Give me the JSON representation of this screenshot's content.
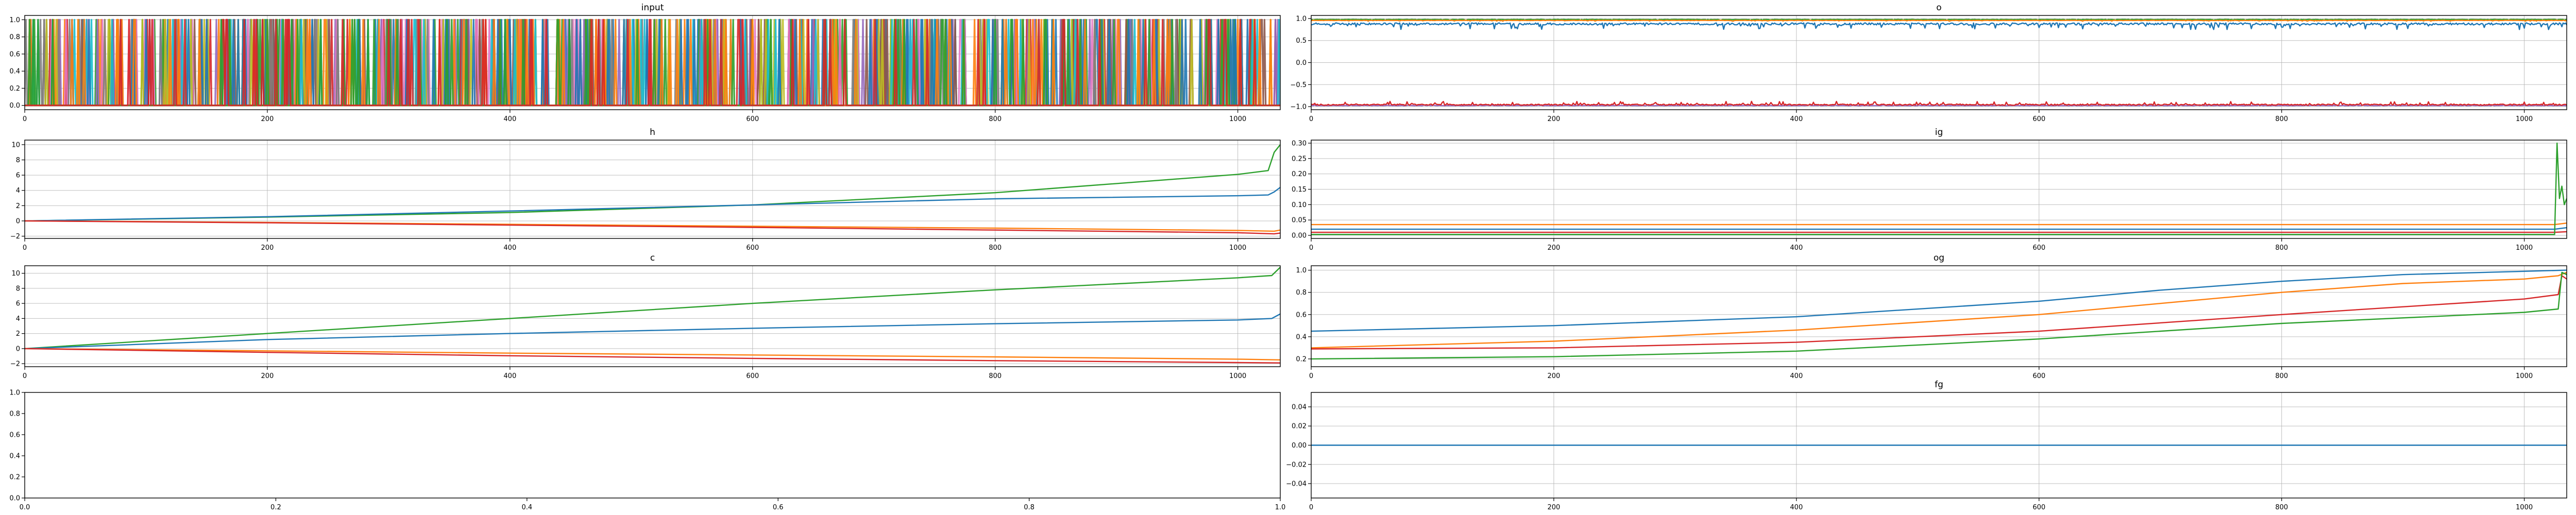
{
  "chart_data": [
    {
      "id": "input",
      "type": "line",
      "title": "input",
      "xlabel": "",
      "ylabel": "",
      "xlim": [
        0,
        1035
      ],
      "ylim": [
        -0.05,
        1.05
      ],
      "xticks": [
        0,
        200,
        400,
        600,
        800,
        1000
      ],
      "yticks": [
        0.0,
        0.2,
        0.4,
        0.6,
        0.8,
        1.0
      ],
      "tick_labels_x": [
        "0",
        "200",
        "400",
        "600",
        "800",
        "1000"
      ],
      "tick_labels_y": [
        "0.0",
        "0.2",
        "0.4",
        "0.6",
        "0.8",
        "1.0"
      ],
      "grid": true,
      "legend": "none",
      "pattern": "dense_one_hot_sequence",
      "description_of_series": "many overlapping binary series switching between 0 and 1 across all 1035 steps",
      "palette": [
        "#1f77b4",
        "#ff7f0e",
        "#2ca02c",
        "#d62728",
        "#9467bd",
        "#8c564b",
        "#e377c2",
        "#7f7f7f",
        "#bcbd22",
        "#17becf"
      ]
    },
    {
      "id": "o",
      "type": "line",
      "title": "o",
      "xlabel": "",
      "ylabel": "",
      "xlim": [
        0,
        1035
      ],
      "ylim": [
        -1.07,
        1.07
      ],
      "xticks": [
        0,
        200,
        400,
        600,
        800,
        1000
      ],
      "yticks": [
        -1.0,
        -0.5,
        0.0,
        0.5,
        1.0
      ],
      "tick_labels_x": [
        "0",
        "200",
        "400",
        "600",
        "800",
        "1000"
      ],
      "tick_labels_y": [
        "−1.0",
        "−0.5",
        "0.0",
        "0.5",
        "1.0"
      ],
      "grid": true,
      "legend": "none",
      "series": [
        {
          "color": "#2ca02c",
          "base": 0.98,
          "noise": 0.02,
          "dir": -1
        },
        {
          "color": "#ff7f0e",
          "base": 0.96,
          "noise": 0.02,
          "dir": -1
        },
        {
          "color": "#1f77b4",
          "base": 0.9,
          "noise": 0.15,
          "dir": -1
        },
        {
          "color": "#9467bd",
          "base": -0.98,
          "noise": 0.02,
          "dir": 1
        },
        {
          "color": "#d62728",
          "base": -0.97,
          "noise": 0.09,
          "dir": 1
        }
      ]
    },
    {
      "id": "h",
      "type": "line",
      "title": "h",
      "xlabel": "",
      "ylabel": "",
      "xlim": [
        0,
        1035
      ],
      "ylim": [
        -2.3,
        10.6
      ],
      "xticks": [
        0,
        200,
        400,
        600,
        800,
        1000
      ],
      "yticks": [
        -2,
        0,
        2,
        4,
        6,
        8,
        10
      ],
      "tick_labels_x": [
        "0",
        "200",
        "400",
        "600",
        "800",
        "1000"
      ],
      "tick_labels_y": [
        "−2",
        "0",
        "2",
        "4",
        "6",
        "8",
        "10"
      ],
      "grid": true,
      "legend": "none",
      "series": [
        {
          "color": "#2ca02c",
          "x": [
            0,
            200,
            400,
            600,
            800,
            1000,
            1025,
            1030,
            1035
          ],
          "y": [
            0,
            0.5,
            1.1,
            2.1,
            3.7,
            6.1,
            6.6,
            9.0,
            10.0
          ]
        },
        {
          "color": "#1f77b4",
          "x": [
            0,
            200,
            400,
            600,
            800,
            1000,
            1025,
            1030,
            1035
          ],
          "y": [
            0,
            0.55,
            1.3,
            2.1,
            2.9,
            3.3,
            3.4,
            3.8,
            4.4
          ]
        },
        {
          "color": "#ff7f0e",
          "x": [
            0,
            200,
            400,
            600,
            800,
            1000,
            1030,
            1035
          ],
          "y": [
            0,
            -0.2,
            -0.45,
            -0.7,
            -0.95,
            -1.25,
            -1.35,
            -1.2
          ]
        },
        {
          "color": "#d62728",
          "x": [
            0,
            200,
            400,
            600,
            800,
            1000,
            1030,
            1035
          ],
          "y": [
            0,
            -0.25,
            -0.55,
            -0.85,
            -1.2,
            -1.55,
            -1.7,
            -1.6
          ]
        }
      ]
    },
    {
      "id": "ig",
      "type": "line",
      "title": "ig",
      "xlabel": "",
      "ylabel": "",
      "xlim": [
        0,
        1035
      ],
      "ylim": [
        -0.01,
        0.31
      ],
      "xticks": [
        0,
        200,
        400,
        600,
        800,
        1000
      ],
      "yticks": [
        0.0,
        0.05,
        0.1,
        0.15,
        0.2,
        0.25,
        0.3
      ],
      "tick_labels_x": [
        "0",
        "200",
        "400",
        "600",
        "800",
        "1000"
      ],
      "tick_labels_y": [
        "0.00",
        "0.05",
        "0.10",
        "0.15",
        "0.20",
        "0.25",
        "0.30"
      ],
      "grid": true,
      "legend": "none",
      "series": [
        {
          "color": "#ff7f0e",
          "x": [
            0,
            1025,
            1035
          ],
          "y": [
            0.035,
            0.035,
            0.04
          ]
        },
        {
          "color": "#1f77b4",
          "x": [
            0,
            1025,
            1035
          ],
          "y": [
            0.02,
            0.02,
            0.025
          ]
        },
        {
          "color": "#d62728",
          "x": [
            0,
            1025,
            1035
          ],
          "y": [
            0.01,
            0.01,
            0.012
          ]
        },
        {
          "color": "#2ca02c",
          "x": [
            0,
            1025,
            1027,
            1029,
            1031,
            1033,
            1035
          ],
          "y": [
            0.003,
            0.003,
            0.3,
            0.12,
            0.16,
            0.1,
            0.12
          ]
        }
      ]
    },
    {
      "id": "c",
      "type": "line",
      "title": "c",
      "xlabel": "",
      "ylabel": "",
      "xlim": [
        0,
        1035
      ],
      "ylim": [
        -2.4,
        11.0
      ],
      "xticks": [
        0,
        200,
        400,
        600,
        800,
        1000
      ],
      "yticks": [
        -2,
        0,
        2,
        4,
        6,
        8,
        10
      ],
      "tick_labels_x": [
        "0",
        "200",
        "400",
        "600",
        "800",
        "1000"
      ],
      "tick_labels_y": [
        "−2",
        "0",
        "2",
        "4",
        "6",
        "8",
        "10"
      ],
      "grid": true,
      "legend": "none",
      "series": [
        {
          "color": "#2ca02c",
          "x": [
            0,
            200,
            400,
            600,
            800,
            1000,
            1028,
            1035
          ],
          "y": [
            0,
            2.0,
            4.0,
            6.0,
            7.8,
            9.4,
            9.7,
            10.8
          ]
        },
        {
          "color": "#1f77b4",
          "x": [
            0,
            200,
            400,
            600,
            800,
            1000,
            1028,
            1035
          ],
          "y": [
            0,
            1.2,
            2.0,
            2.7,
            3.3,
            3.8,
            4.0,
            4.6
          ]
        },
        {
          "color": "#ff7f0e",
          "x": [
            0,
            200,
            400,
            600,
            800,
            1000,
            1035
          ],
          "y": [
            0,
            -0.3,
            -0.6,
            -0.85,
            -1.1,
            -1.4,
            -1.5
          ]
        },
        {
          "color": "#d62728",
          "x": [
            0,
            200,
            400,
            600,
            800,
            1000,
            1035
          ],
          "y": [
            0,
            -0.5,
            -0.95,
            -1.3,
            -1.6,
            -1.85,
            -1.9
          ]
        }
      ]
    },
    {
      "id": "og",
      "type": "line",
      "title": "og",
      "xlabel": "",
      "ylabel": "",
      "xlim": [
        0,
        1035
      ],
      "ylim": [
        0.13,
        1.04
      ],
      "xticks": [
        0,
        200,
        400,
        600,
        800,
        1000
      ],
      "yticks": [
        0.2,
        0.4,
        0.6,
        0.8,
        1.0
      ],
      "tick_labels_x": [
        "0",
        "200",
        "400",
        "600",
        "800",
        "1000"
      ],
      "tick_labels_y": [
        "0.2",
        "0.4",
        "0.6",
        "0.8",
        "1.0"
      ],
      "grid": true,
      "legend": "none",
      "series": [
        {
          "color": "#1f77b4",
          "x": [
            0,
            200,
            400,
            600,
            700,
            800,
            900,
            1000,
            1035
          ],
          "y": [
            0.45,
            0.5,
            0.58,
            0.72,
            0.82,
            0.9,
            0.96,
            0.99,
            1.0
          ]
        },
        {
          "color": "#ff7f0e",
          "x": [
            0,
            200,
            400,
            600,
            700,
            800,
            900,
            1000,
            1028,
            1035
          ],
          "y": [
            0.3,
            0.36,
            0.46,
            0.6,
            0.7,
            0.8,
            0.88,
            0.92,
            0.95,
            0.98
          ]
        },
        {
          "color": "#d62728",
          "x": [
            0,
            200,
            400,
            600,
            800,
            1000,
            1028,
            1031,
            1035
          ],
          "y": [
            0.29,
            0.3,
            0.35,
            0.45,
            0.6,
            0.74,
            0.78,
            0.95,
            0.92
          ]
        },
        {
          "color": "#2ca02c",
          "x": [
            0,
            200,
            400,
            600,
            800,
            1000,
            1028,
            1031,
            1035
          ],
          "y": [
            0.2,
            0.22,
            0.27,
            0.38,
            0.52,
            0.62,
            0.65,
            0.98,
            0.96
          ]
        }
      ]
    },
    {
      "id": "empty",
      "type": "line",
      "title": "",
      "xlabel": "",
      "ylabel": "",
      "xlim": [
        0,
        1
      ],
      "ylim": [
        0,
        1
      ],
      "xticks": [
        0,
        0.2,
        0.4,
        0.6,
        0.8,
        1.0
      ],
      "yticks": [
        0,
        0.2,
        0.4,
        0.6,
        0.8,
        1.0
      ],
      "tick_labels_x": [
        "0.0",
        "0.2",
        "0.4",
        "0.6",
        "0.8",
        "1.0"
      ],
      "tick_labels_y": [
        "0.0",
        "0.2",
        "0.4",
        "0.6",
        "0.8",
        "1.0"
      ],
      "grid": false,
      "legend": "none",
      "series": []
    },
    {
      "id": "fg",
      "type": "line",
      "title": "fg",
      "xlabel": "",
      "ylabel": "",
      "xlim": [
        0,
        1035
      ],
      "ylim": [
        -0.055,
        0.055
      ],
      "xticks": [
        0,
        200,
        400,
        600,
        800,
        1000
      ],
      "yticks": [
        -0.04,
        -0.02,
        0.0,
        0.02,
        0.04
      ],
      "tick_labels_x": [
        "0",
        "200",
        "400",
        "600",
        "800",
        "1000"
      ],
      "tick_labels_y": [
        "−0.04",
        "−0.02",
        "0.00",
        "0.02",
        "0.04"
      ],
      "grid": true,
      "legend": "none",
      "series": [
        {
          "color": "#1f77b4",
          "x": [
            0,
            1035
          ],
          "y": [
            0.0,
            0.0
          ]
        }
      ]
    }
  ]
}
